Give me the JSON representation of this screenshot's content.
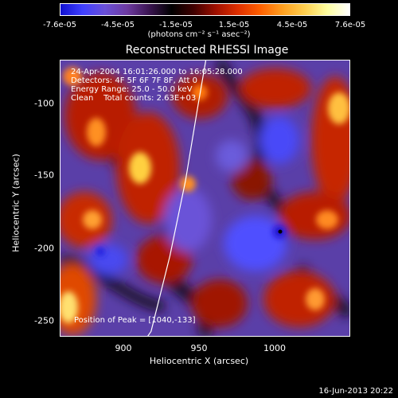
{
  "colorbar": {
    "ticks": [
      "-7.6e-05",
      "-4.5e-05",
      "-1.5e-05",
      "1.5e-05",
      "4.5e-05",
      "7.6e-05"
    ],
    "units": "(photons cm⁻² s⁻¹ asec⁻²)",
    "range": [
      -7.6e-05,
      7.6e-05
    ],
    "colormap": [
      "#1010d0",
      "#4040ff",
      "#6a50d8",
      "#6d3aa0",
      "#3a1450",
      "#000000",
      "#400000",
      "#a01000",
      "#e03000",
      "#ff6000",
      "#ffa020",
      "#ffd050",
      "#ffffa0",
      "#ffffff"
    ]
  },
  "title": "Reconstructed RHESSI Image",
  "info": {
    "line1": "24-Apr-2004 16:01:26.000 to 16:05:28.000",
    "line2": "Detectors: 4F 5F 6F 7F 8F, Att 0",
    "line3": "Energy Range: 25.0 - 50.0 keV",
    "line4": "Clean    Total counts: 2.63E+03",
    "peak": "Position of Peak = [1040,-133]"
  },
  "axes": {
    "x_label": "Heliocentric X (arcsec)",
    "y_label": "Heliocentric Y (arcsec)",
    "x_ticks": [
      "900",
      "950",
      "1000"
    ],
    "y_ticks": [
      "-100",
      "-150",
      "-200",
      "-250"
    ],
    "x_range": [
      860,
      1045
    ],
    "y_range": [
      -263,
      -80
    ]
  },
  "limb": {
    "points": [
      [
        898,
        -290
      ],
      [
        918,
        -260
      ],
      [
        930,
        -210
      ],
      [
        940,
        -160
      ],
      [
        948,
        -110
      ],
      [
        953,
        -80
      ]
    ]
  },
  "footer": {
    "date": "16-Jun-2013 20:22"
  }
}
